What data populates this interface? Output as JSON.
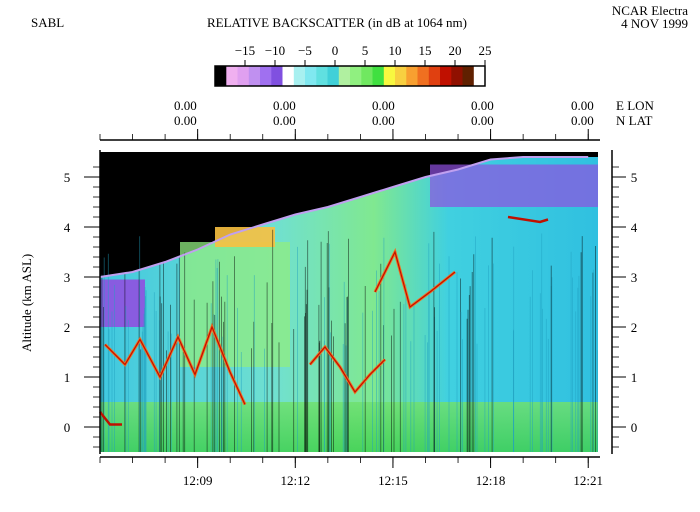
{
  "header": {
    "instrument": "SABL",
    "title": "RELATIVE BACKSCATTER (in dB at 1064 nm)",
    "aircraft": "NCAR Electra",
    "date": "4 NOV 1999"
  },
  "colorbar": {
    "ticks": [
      "−15",
      "−10",
      "−5",
      "0",
      "5",
      "10",
      "15",
      "20",
      "25"
    ],
    "range": [
      -20,
      25
    ],
    "colors": [
      "#000000",
      "#f0b0f0",
      "#e0a0f0",
      "#c090f0",
      "#a070f0",
      "#8050e0",
      "#ffffff",
      "#a8f0f0",
      "#80e8f0",
      "#60e0e0",
      "#40d0d8",
      "#b0f0a0",
      "#90f080",
      "#70e860",
      "#40e040",
      "#f8f840",
      "#f8d040",
      "#f8a030",
      "#f07020",
      "#e04010",
      "#c01000",
      "#901000",
      "#602000",
      "#ffffff"
    ]
  },
  "position": {
    "e_lon_label": "E LON",
    "n_lat_label": "N LAT",
    "lon_values": [
      "0.00",
      "0.00",
      "0.00",
      "0.00",
      "0.00"
    ],
    "lat_values": [
      "0.00",
      "0.00",
      "0.00",
      "0.00",
      "0.00"
    ]
  },
  "colors": {
    "no_data": "#000000",
    "clear_air": "#30c8e0",
    "aerosol": "#a0f080",
    "cloud": "#f07020",
    "strong": "#c01000",
    "above_flight": "#9050e0"
  },
  "chart_data": {
    "type": "heatmap",
    "title": "RELATIVE BACKSCATTER (in dB at 1064 nm)",
    "ylabel": "Altitude (km ASL)",
    "xlabel": "",
    "x_ticks": [
      "12:09",
      "12:12",
      "12:15",
      "12:18",
      "12:21"
    ],
    "y_ticks": [
      "0",
      "1",
      "2",
      "3",
      "4",
      "5"
    ],
    "ylim": [
      -0.5,
      5.5
    ],
    "xlim": [
      "12:06",
      "12:21"
    ],
    "flight_altitude": {
      "time": [
        "12:06",
        "12:07",
        "12:08",
        "12:09",
        "12:10",
        "12:11",
        "12:12",
        "12:13",
        "12:14",
        "12:15",
        "12:16",
        "12:17",
        "12:18",
        "12:19",
        "12:20",
        "12:21"
      ],
      "altitude_km": [
        3.0,
        3.1,
        3.3,
        3.55,
        3.85,
        4.05,
        4.25,
        4.4,
        4.6,
        4.8,
        5.0,
        5.15,
        5.35,
        5.4,
        5.4,
        5.4
      ]
    },
    "units": "dB"
  }
}
